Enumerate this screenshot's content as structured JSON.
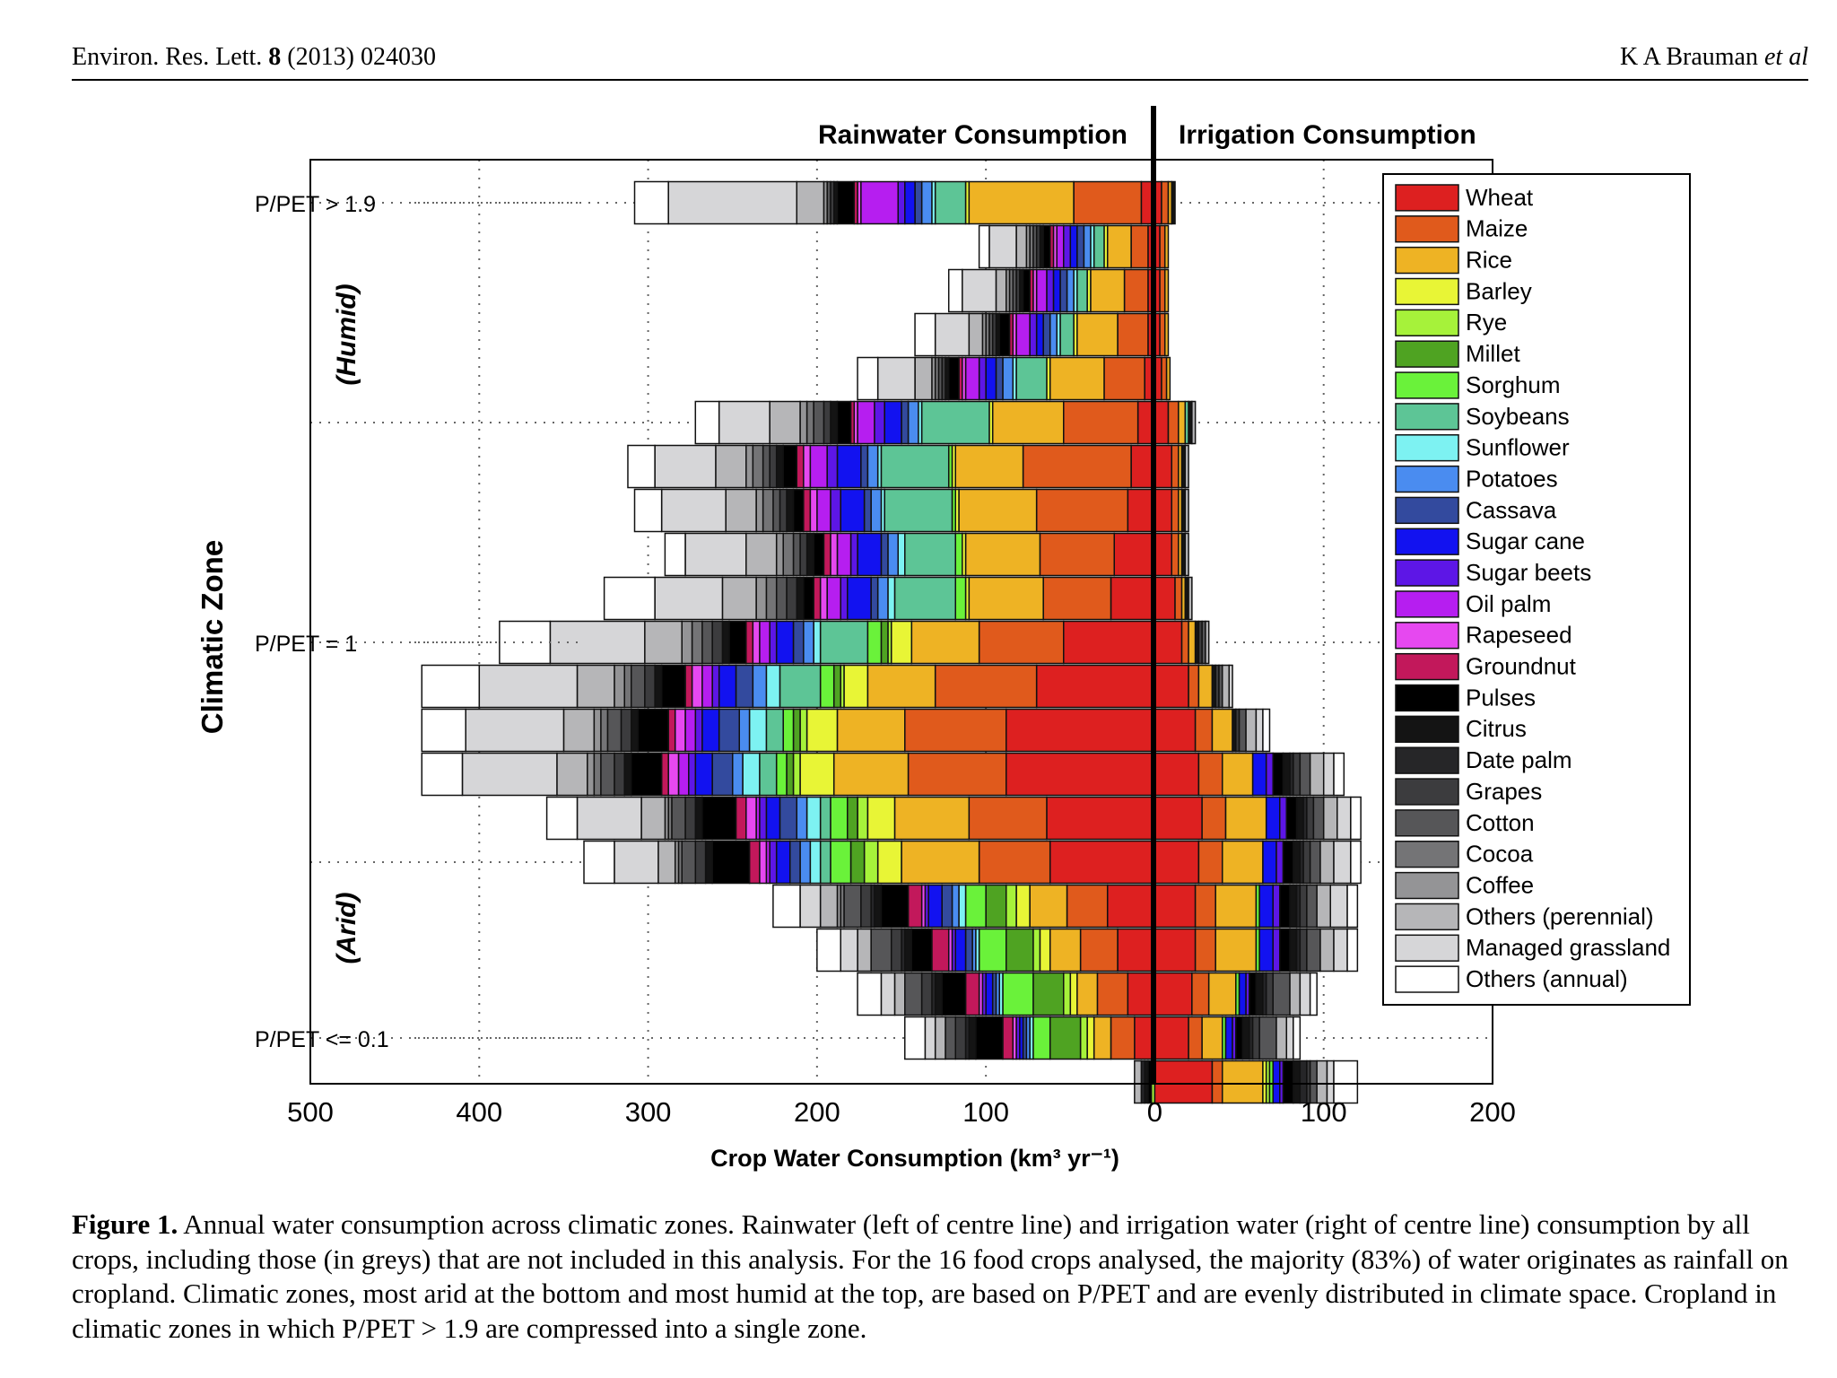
{
  "header": {
    "journal_prefix": "Environ. Res. Lett.",
    "volume": "8",
    "year_article": "(2013) 024030",
    "authors": "K A Brauman",
    "et_al": "et al"
  },
  "caption": {
    "label": "Figure 1.",
    "text": "Annual water consumption across climatic zones. Rainwater (left of centre line) and irrigation water (right of centre line) consumption by all crops, including those (in greys) that are not included in this analysis. For the 16 food crops analysed, the majority (83%) of water originates as rainfall on cropland. Climatic zones, most arid at the bottom and most humid at the top, are based on P/PET and are evenly distributed in climate space. Cropland in climatic zones in which P/PET > 1.9 are compressed into a single zone."
  },
  "chart_data": {
    "type": "bar",
    "orientation": "horizontal-diverging",
    "title_left": "Rainwater Consumption",
    "title_right": "Irrigation Consumption",
    "xlabel": "Crop Water Consumption (km³ yr⁻¹)",
    "ylabel": "Climatic Zone",
    "xlim": [
      -500,
      200
    ],
    "x_ticks": [
      -500,
      -400,
      -300,
      -200,
      -100,
      0,
      100,
      200
    ],
    "x_tick_labels": [
      "500",
      "400",
      "300",
      "200",
      "100",
      "0",
      "100",
      "200"
    ],
    "zone_labels": [
      {
        "text": "P/PET > 1.9",
        "row": 0
      },
      {
        "text": "P/PET = 1",
        "row": 10
      },
      {
        "text": "P/PET <= 0.1",
        "row": 19
      }
    ],
    "side_labels": [
      {
        "text": "(Humid)",
        "row_center": 3
      },
      {
        "text": "(Arid)",
        "row_center": 16.5
      }
    ],
    "legend_position": "right",
    "colors": {
      "Wheat": "#dd2020",
      "Maize": "#e05a1c",
      "Rice": "#eeb324",
      "Barley": "#e8f536",
      "Rye": "#a6f23a",
      "Millet": "#4fa322",
      "Sorghum": "#6af23a",
      "Soybeans": "#5dc596",
      "Sunflower": "#7df2f2",
      "Potatoes": "#4a8cf0",
      "Cassava": "#334a9e",
      "Sugar cane": "#1212f0",
      "Sugar beets": "#5d16e6",
      "Oil palm": "#b61ef0",
      "Rapeseed": "#e648f0",
      "Groundnut": "#c2185b",
      "Pulses": "#000000",
      "Citrus": "#141414",
      "Date palm": "#262628",
      "Grapes": "#3c3c3e",
      "Cotton": "#565658",
      "Cocoa": "#747476",
      "Coffee": "#949496",
      "Others (perennial)": "#b6b6b8",
      "Managed grassland": "#d6d6d8",
      "Others (annual)": "#ffffff"
    },
    "series": [
      {
        "name": "Wheat",
        "rain": [
          8,
          4,
          4,
          4,
          6,
          10,
          14,
          16,
          24,
          26,
          54,
          70,
          88,
          88,
          64,
          62,
          28,
          22,
          16,
          12,
          0
        ],
        "irr": [
          4,
          3,
          3,
          3,
          4,
          8,
          10,
          10,
          10,
          12,
          16,
          20,
          24,
          26,
          28,
          26,
          24,
          24,
          22,
          20,
          34
        ]
      },
      {
        "name": "Maize",
        "rain": [
          40,
          10,
          14,
          18,
          24,
          44,
          64,
          54,
          44,
          40,
          50,
          60,
          60,
          58,
          46,
          42,
          24,
          22,
          18,
          14,
          0
        ],
        "irr": [
          4,
          3,
          3,
          3,
          3,
          6,
          4,
          4,
          4,
          4,
          4,
          6,
          10,
          14,
          14,
          14,
          12,
          12,
          10,
          8,
          6
        ]
      },
      {
        "name": "Rice",
        "rain": [
          62,
          14,
          20,
          24,
          32,
          42,
          40,
          46,
          44,
          44,
          40,
          40,
          40,
          44,
          44,
          46,
          22,
          18,
          12,
          10,
          0
        ],
        "irr": [
          2,
          2,
          2,
          2,
          2,
          4,
          2,
          2,
          2,
          2,
          4,
          8,
          12,
          18,
          24,
          24,
          24,
          24,
          16,
          12,
          24
        ]
      },
      {
        "name": "Barley",
        "rain": [
          2,
          2,
          2,
          2,
          2,
          2,
          2,
          2,
          2,
          2,
          12,
          14,
          18,
          20,
          16,
          14,
          8,
          6,
          4,
          4,
          0
        ],
        "irr": [
          0,
          0,
          0,
          0,
          0,
          0,
          0,
          0,
          0,
          0,
          0,
          0,
          0,
          0,
          0,
          0,
          0,
          0,
          0,
          0,
          2
        ]
      },
      {
        "name": "Rye",
        "rain": [
          0,
          0,
          0,
          0,
          0,
          0,
          0,
          0,
          0,
          0,
          2,
          2,
          4,
          4,
          6,
          8,
          6,
          4,
          4,
          4,
          2
        ],
        "irr": [
          0,
          0,
          0,
          0,
          0,
          0,
          0,
          0,
          0,
          0,
          0,
          0,
          0,
          0,
          0,
          0,
          0,
          0,
          0,
          0,
          2
        ]
      },
      {
        "name": "Millet",
        "rain": [
          0,
          0,
          0,
          0,
          0,
          0,
          0,
          0,
          0,
          0,
          4,
          4,
          4,
          4,
          6,
          8,
          12,
          16,
          18,
          18,
          0
        ],
        "irr": [
          0,
          0,
          0,
          0,
          0,
          0,
          0,
          0,
          0,
          0,
          0,
          0,
          0,
          0,
          0,
          0,
          0,
          0,
          0,
          0,
          0
        ]
      },
      {
        "name": "Sorghum",
        "rain": [
          0,
          0,
          0,
          0,
          0,
          0,
          2,
          2,
          4,
          6,
          8,
          8,
          6,
          6,
          10,
          12,
          12,
          16,
          18,
          10,
          0
        ],
        "irr": [
          0,
          0,
          0,
          0,
          0,
          0,
          0,
          0,
          0,
          0,
          0,
          0,
          0,
          0,
          0,
          0,
          2,
          2,
          2,
          2,
          2
        ]
      },
      {
        "name": "Soybeans",
        "rain": [
          18,
          6,
          6,
          8,
          18,
          40,
          40,
          40,
          30,
          36,
          28,
          24,
          10,
          10,
          6,
          6,
          0,
          0,
          0,
          0,
          0
        ],
        "irr": [
          0,
          0,
          0,
          0,
          0,
          2,
          0,
          0,
          0,
          0,
          0,
          0,
          0,
          0,
          0,
          0,
          0,
          0,
          0,
          0,
          0
        ]
      },
      {
        "name": "Sunflower",
        "rain": [
          2,
          2,
          2,
          2,
          2,
          2,
          2,
          2,
          4,
          4,
          4,
          8,
          10,
          10,
          8,
          6,
          4,
          2,
          2,
          2,
          0
        ],
        "irr": [
          0,
          0,
          0,
          0,
          0,
          0,
          0,
          0,
          0,
          0,
          0,
          0,
          0,
          0,
          0,
          0,
          0,
          0,
          0,
          0,
          0
        ]
      },
      {
        "name": "Potatoes",
        "rain": [
          6,
          4,
          4,
          4,
          6,
          6,
          6,
          6,
          6,
          6,
          6,
          8,
          6,
          6,
          6,
          6,
          4,
          2,
          2,
          2,
          0
        ],
        "irr": [
          0,
          0,
          0,
          0,
          0,
          0,
          0,
          0,
          0,
          0,
          0,
          0,
          0,
          0,
          0,
          0,
          0,
          0,
          0,
          0,
          0
        ]
      },
      {
        "name": "Cassava",
        "rain": [
          4,
          4,
          4,
          4,
          4,
          4,
          4,
          4,
          4,
          4,
          6,
          10,
          12,
          12,
          10,
          6,
          6,
          4,
          2,
          2,
          0
        ],
        "irr": [
          0,
          0,
          0,
          0,
          0,
          0,
          0,
          0,
          0,
          0,
          0,
          0,
          0,
          0,
          0,
          0,
          0,
          0,
          0,
          0,
          0
        ]
      },
      {
        "name": "Sugar cane",
        "rain": [
          6,
          4,
          4,
          4,
          6,
          10,
          14,
          14,
          14,
          14,
          10,
          10,
          10,
          10,
          8,
          8,
          8,
          6,
          4,
          2,
          0
        ],
        "irr": [
          0,
          0,
          0,
          0,
          0,
          0,
          0,
          0,
          0,
          0,
          0,
          0,
          0,
          8,
          8,
          8,
          8,
          8,
          4,
          4,
          4
        ]
      },
      {
        "name": "Sugar beets",
        "rain": [
          4,
          4,
          4,
          4,
          4,
          6,
          6,
          6,
          4,
          4,
          4,
          4,
          4,
          4,
          4,
          4,
          2,
          2,
          2,
          2,
          0
        ],
        "irr": [
          0,
          0,
          0,
          0,
          0,
          0,
          0,
          0,
          0,
          0,
          0,
          0,
          0,
          4,
          4,
          4,
          4,
          4,
          2,
          2,
          2
        ]
      },
      {
        "name": "Oil palm",
        "rain": [
          22,
          4,
          6,
          8,
          8,
          10,
          10,
          8,
          8,
          8,
          6,
          6,
          6,
          6,
          2,
          2,
          0,
          0,
          0,
          0,
          0
        ],
        "irr": [
          0,
          0,
          0,
          0,
          0,
          0,
          0,
          0,
          0,
          0,
          0,
          0,
          0,
          0,
          0,
          0,
          0,
          0,
          0,
          0,
          0
        ]
      },
      {
        "name": "Rapeseed",
        "rain": [
          2,
          2,
          2,
          2,
          2,
          2,
          4,
          4,
          4,
          4,
          4,
          6,
          6,
          6,
          6,
          4,
          2,
          2,
          2,
          2,
          0
        ],
        "irr": [
          0,
          0,
          0,
          0,
          0,
          0,
          0,
          0,
          0,
          0,
          0,
          0,
          0,
          0,
          0,
          0,
          0,
          0,
          0,
          0,
          0
        ]
      },
      {
        "name": "Groundnut",
        "rain": [
          2,
          2,
          2,
          2,
          2,
          2,
          4,
          4,
          4,
          4,
          4,
          4,
          4,
          4,
          6,
          6,
          8,
          10,
          8,
          6,
          0
        ],
        "irr": [
          0,
          0,
          0,
          0,
          0,
          0,
          0,
          0,
          0,
          0,
          0,
          0,
          0,
          0,
          0,
          0,
          0,
          0,
          0,
          0,
          0
        ]
      },
      {
        "name": "Pulses",
        "rain": [
          10,
          4,
          4,
          6,
          6,
          8,
          8,
          6,
          6,
          6,
          10,
          14,
          18,
          18,
          20,
          22,
          16,
          12,
          14,
          16,
          2
        ],
        "irr": [
          0,
          0,
          0,
          0,
          0,
          0,
          0,
          0,
          0,
          0,
          0,
          0,
          0,
          6,
          6,
          6,
          6,
          6,
          4,
          4,
          6
        ]
      },
      {
        "name": "Citrus",
        "rain": [
          2,
          2,
          2,
          2,
          2,
          4,
          4,
          4,
          4,
          4,
          4,
          4,
          4,
          4,
          4,
          4,
          4,
          4,
          4,
          4,
          2
        ],
        "irr": [
          2,
          0,
          0,
          0,
          0,
          2,
          2,
          2,
          2,
          2,
          2,
          2,
          2,
          4,
          4,
          4,
          4,
          4,
          4,
          4,
          4
        ]
      },
      {
        "name": "Date palm",
        "rain": [
          0,
          0,
          0,
          0,
          0,
          0,
          0,
          0,
          0,
          0,
          0,
          0,
          0,
          0,
          0,
          0,
          2,
          2,
          2,
          2,
          2
        ],
        "irr": [
          0,
          0,
          0,
          0,
          0,
          0,
          0,
          0,
          0,
          0,
          0,
          0,
          0,
          2,
          2,
          2,
          2,
          2,
          2,
          2,
          4
        ]
      },
      {
        "name": "Grapes",
        "rain": [
          2,
          2,
          2,
          2,
          2,
          4,
          4,
          4,
          4,
          6,
          6,
          6,
          6,
          6,
          6,
          6,
          6,
          6,
          6,
          6,
          0
        ],
        "irr": [
          0,
          0,
          0,
          0,
          0,
          0,
          0,
          0,
          0,
          0,
          2,
          2,
          2,
          4,
          4,
          4,
          4,
          4,
          4,
          4,
          2
        ]
      },
      {
        "name": "Cotton",
        "rain": [
          2,
          2,
          2,
          2,
          2,
          6,
          4,
          4,
          4,
          6,
          6,
          8,
          8,
          8,
          8,
          8,
          10,
          12,
          10,
          6,
          0
        ],
        "irr": [
          0,
          0,
          0,
          0,
          0,
          0,
          0,
          0,
          0,
          0,
          2,
          2,
          4,
          6,
          6,
          6,
          6,
          8,
          10,
          10,
          4
        ]
      },
      {
        "name": "Cocoa",
        "rain": [
          0,
          2,
          2,
          2,
          2,
          4,
          6,
          6,
          6,
          6,
          6,
          4,
          4,
          4,
          2,
          2,
          2,
          0,
          0,
          0,
          0
        ],
        "irr": [
          0,
          0,
          0,
          0,
          0,
          0,
          0,
          0,
          0,
          0,
          0,
          0,
          0,
          0,
          0,
          0,
          0,
          0,
          0,
          0,
          0
        ]
      },
      {
        "name": "Coffee",
        "rain": [
          2,
          2,
          2,
          2,
          2,
          4,
          4,
          4,
          4,
          6,
          6,
          6,
          4,
          4,
          2,
          2,
          2,
          0,
          0,
          0,
          0
        ],
        "irr": [
          0,
          0,
          0,
          0,
          0,
          0,
          0,
          0,
          0,
          0,
          0,
          0,
          0,
          0,
          0,
          0,
          0,
          0,
          0,
          0,
          0
        ]
      },
      {
        "name": "Others (perennial)",
        "rain": [
          16,
          6,
          6,
          8,
          10,
          18,
          18,
          18,
          18,
          20,
          22,
          22,
          18,
          18,
          14,
          10,
          10,
          8,
          6,
          6,
          4
        ],
        "irr": [
          0,
          0,
          0,
          0,
          0,
          2,
          2,
          2,
          2,
          2,
          2,
          4,
          6,
          8,
          8,
          8,
          8,
          8,
          6,
          6,
          6
        ]
      },
      {
        "name": "Managed grassland",
        "rain": [
          76,
          16,
          20,
          20,
          22,
          30,
          36,
          38,
          36,
          40,
          56,
          58,
          58,
          56,
          38,
          26,
          12,
          10,
          8,
          6,
          0
        ],
        "irr": [
          0,
          0,
          0,
          0,
          0,
          0,
          0,
          0,
          0,
          0,
          0,
          2,
          4,
          6,
          8,
          10,
          10,
          8,
          6,
          4,
          4
        ]
      },
      {
        "name": "Others (annual)",
        "rain": [
          20,
          6,
          8,
          12,
          12,
          14,
          16,
          16,
          12,
          30,
          30,
          34,
          26,
          24,
          18,
          18,
          16,
          14,
          14,
          12,
          0
        ],
        "irr": [
          0,
          0,
          0,
          0,
          0,
          0,
          0,
          0,
          0,
          0,
          0,
          0,
          4,
          6,
          6,
          6,
          6,
          6,
          4,
          4,
          14
        ]
      }
    ]
  }
}
